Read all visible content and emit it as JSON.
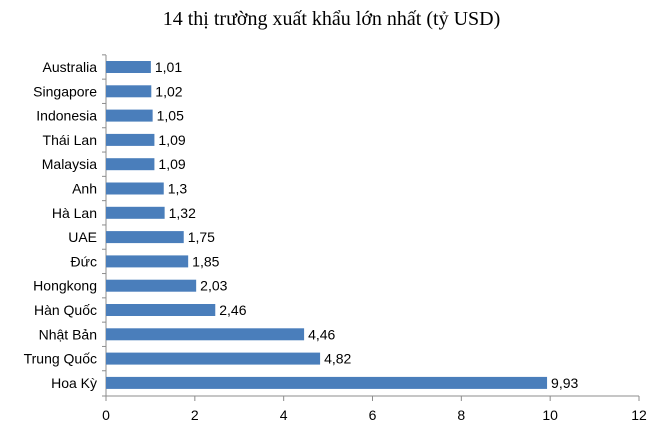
{
  "chart_data": {
    "type": "bar",
    "orientation": "horizontal",
    "title": "14 thị trường xuất khẩu lớn nhất (tỷ USD)",
    "xlabel": "",
    "ylabel": "",
    "categories": [
      "Australia",
      "Singapore",
      "Indonesia",
      "Thái Lan",
      "Malaysia",
      "Anh",
      "Hà Lan",
      "UAE",
      "Đức",
      "Hongkong",
      "Hàn Quốc",
      "Nhật Bản",
      "Trung Quốc",
      "Hoa Kỳ"
    ],
    "values": [
      1.01,
      1.02,
      1.05,
      1.09,
      1.09,
      1.3,
      1.32,
      1.75,
      1.85,
      2.03,
      2.46,
      4.46,
      4.82,
      9.93
    ],
    "value_labels": [
      "1,01",
      "1,02",
      "1,05",
      "1,09",
      "1,09",
      "1,3",
      "1,32",
      "1,75",
      "1,85",
      "2,03",
      "2,46",
      "4,46",
      "4,82",
      "9,93"
    ],
    "xlim": [
      0,
      12
    ],
    "x_ticks": [
      "0",
      "2",
      "4",
      "6",
      "8",
      "10",
      "12"
    ],
    "bar_color": "#4a7ebb",
    "grid": false,
    "legend": "none"
  }
}
